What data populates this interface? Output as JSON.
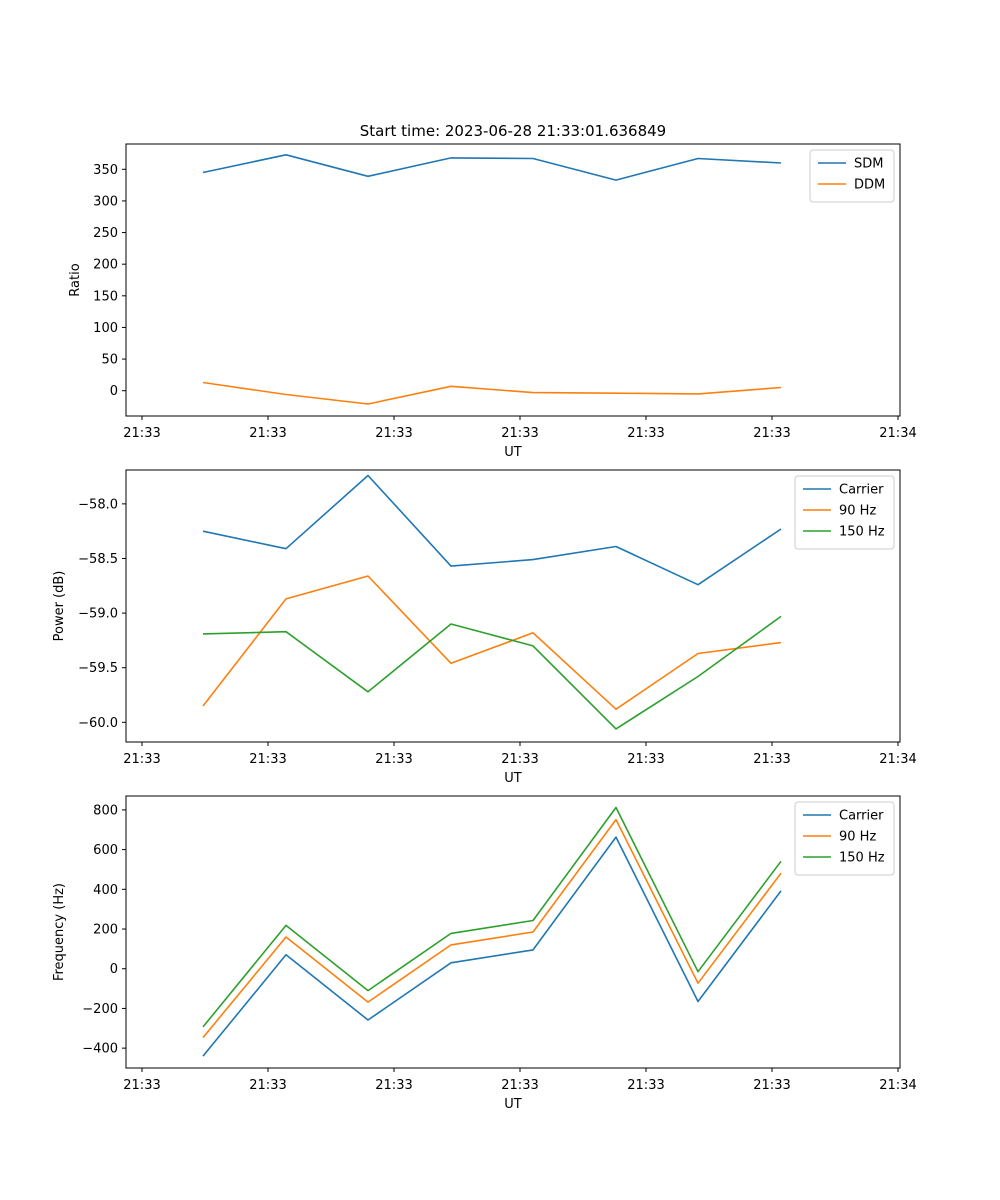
{
  "figure": {
    "title": "Start time: 2023-06-28 21:33:01.636849"
  },
  "chart_data": [
    {
      "type": "line",
      "title": "Start time: 2023-06-28 21:33:01.636849",
      "xlabel": "UT",
      "ylabel": "Ratio",
      "x_tick_labels": [
        "21:33",
        "21:33",
        "21:33",
        "21:33",
        "21:33",
        "21:33",
        "21:34"
      ],
      "x_point_count": 8,
      "ylim": [
        -40,
        390
      ],
      "y_ticks": [
        0,
        50,
        100,
        150,
        200,
        250,
        300,
        350
      ],
      "y_tick_labels": [
        "0",
        "50",
        "100",
        "150",
        "200",
        "250",
        "300",
        "350"
      ],
      "legend_position": "top-right",
      "grid": false,
      "series": [
        {
          "name": "SDM",
          "color": "#1f77b4",
          "values": [
            345,
            373,
            339,
            368,
            367,
            333,
            367,
            360
          ]
        },
        {
          "name": "DDM",
          "color": "#ff7f0e",
          "values": [
            13,
            -6,
            -21,
            7,
            -3,
            -4,
            -5,
            5
          ]
        }
      ]
    },
    {
      "type": "line",
      "title": "",
      "xlabel": "UT",
      "ylabel": "Power (dB)",
      "x_tick_labels": [
        "21:33",
        "21:33",
        "21:33",
        "21:33",
        "21:33",
        "21:33",
        "21:34"
      ],
      "x_point_count": 8,
      "ylim": [
        -60.18,
        -57.69
      ],
      "y_ticks": [
        -60.0,
        -59.5,
        -59.0,
        -58.5,
        -58.0
      ],
      "y_tick_labels": [
        "−60.0",
        "−59.5",
        "−59.0",
        "−58.5",
        "−58.0"
      ],
      "legend_position": "top-right",
      "grid": false,
      "series": [
        {
          "name": "Carrier",
          "color": "#1f77b4",
          "values": [
            -58.25,
            -58.41,
            -57.74,
            -58.57,
            -58.51,
            -58.39,
            -58.74,
            -58.23
          ]
        },
        {
          "name": "90 Hz",
          "color": "#ff7f0e",
          "values": [
            -59.85,
            -58.87,
            -58.66,
            -59.46,
            -59.18,
            -59.88,
            -59.37,
            -59.27
          ]
        },
        {
          "name": "150 Hz",
          "color": "#2ca02c",
          "values": [
            -59.19,
            -59.17,
            -59.72,
            -59.1,
            -59.3,
            -60.06,
            -59.58,
            -59.03
          ]
        }
      ]
    },
    {
      "type": "line",
      "title": "",
      "xlabel": "UT",
      "ylabel": "Frequency (Hz)",
      "x_tick_labels": [
        "21:33",
        "21:33",
        "21:33",
        "21:33",
        "21:33",
        "21:33",
        "21:34"
      ],
      "x_point_count": 8,
      "ylim": [
        -500,
        870
      ],
      "y_ticks": [
        -400,
        -200,
        0,
        200,
        400,
        600,
        800
      ],
      "y_tick_labels": [
        "−400",
        "−200",
        "0",
        "200",
        "400",
        "600",
        "800"
      ],
      "legend_position": "top-right",
      "grid": false,
      "series": [
        {
          "name": "Carrier",
          "color": "#1f77b4",
          "values": [
            -440,
            70,
            -258,
            30,
            95,
            663,
            -165,
            392
          ]
        },
        {
          "name": "90 Hz",
          "color": "#ff7f0e",
          "values": [
            -347,
            160,
            -168,
            120,
            185,
            751,
            -73,
            481
          ]
        },
        {
          "name": "150 Hz",
          "color": "#2ca02c",
          "values": [
            -293,
            218,
            -110,
            178,
            243,
            812,
            -15,
            541
          ]
        }
      ]
    }
  ]
}
